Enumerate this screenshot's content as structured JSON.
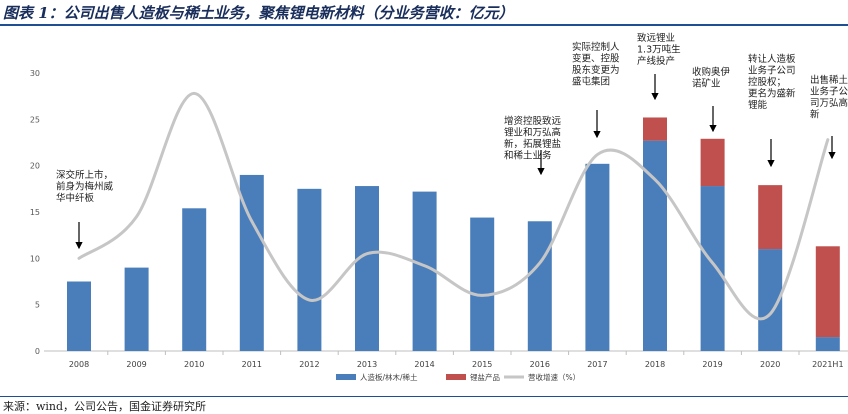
{
  "title": "图表 1：公司出售人造板与稀土业务，聚焦锂电新材料（分业务营收：亿元）",
  "source": "来源：wind，公司公告，国金证券研究所",
  "colors": {
    "board": "#4a7ebb",
    "lithium": "#c0504d",
    "growth": "#c6c6c6",
    "title": "#1a2e5c"
  },
  "chart_data": {
    "type": "bar",
    "categories": [
      "2008",
      "2009",
      "2010",
      "2011",
      "2012",
      "2013",
      "2014",
      "2015",
      "2016",
      "2017",
      "2018",
      "2019",
      "2020",
      "2021H1"
    ],
    "ylim": [
      0,
      30
    ],
    "yticks": [
      0,
      5,
      10,
      15,
      20,
      25,
      30
    ],
    "series": [
      {
        "name": "人造板/林木/稀土",
        "kind": "bar",
        "values": [
          7.5,
          9.0,
          15.4,
          19.0,
          17.5,
          17.8,
          17.2,
          14.4,
          14.0,
          20.2,
          22.7,
          17.8,
          11.0,
          1.5
        ]
      },
      {
        "name": "锂盐产品",
        "kind": "bar",
        "values": [
          0,
          0,
          0,
          0,
          0,
          0,
          0,
          0,
          0,
          0,
          2.5,
          5.1,
          6.9,
          9.8
        ]
      },
      {
        "name": "营收增速（%）",
        "kind": "line",
        "values": [
          10.0,
          14.5,
          27.8,
          14.0,
          5.5,
          10.5,
          9.2,
          6.0,
          9.5,
          21.2,
          18.5,
          9.5,
          4.0,
          22.8
        ]
      }
    ],
    "annotations": [
      {
        "category": "2008",
        "lines": [
          "深交所上市，",
          "前身为梅州威",
          "华中纤板"
        ]
      },
      {
        "category": "2016",
        "lines": [
          "增资控股致远",
          "锂业和万弘高",
          "新，拓展锂盐",
          "和稀土业务"
        ]
      },
      {
        "category": "2017",
        "lines": [
          "实际控制人",
          "变更、控股",
          "股东变更为",
          "盛屯集团"
        ]
      },
      {
        "category": "2018",
        "lines": [
          "致远锂业",
          "1.3万吨生",
          "产线投产"
        ]
      },
      {
        "category": "2019",
        "lines": [
          "收购奥伊",
          "诺矿业"
        ]
      },
      {
        "category": "2020",
        "lines": [
          "转让人造板",
          "业务子公司",
          "控股权；",
          "更名为盛新",
          "锂能"
        ]
      },
      {
        "category": "2021H1",
        "lines": [
          "出售稀土",
          "业务子公",
          "司万弘高",
          "新"
        ]
      }
    ]
  }
}
